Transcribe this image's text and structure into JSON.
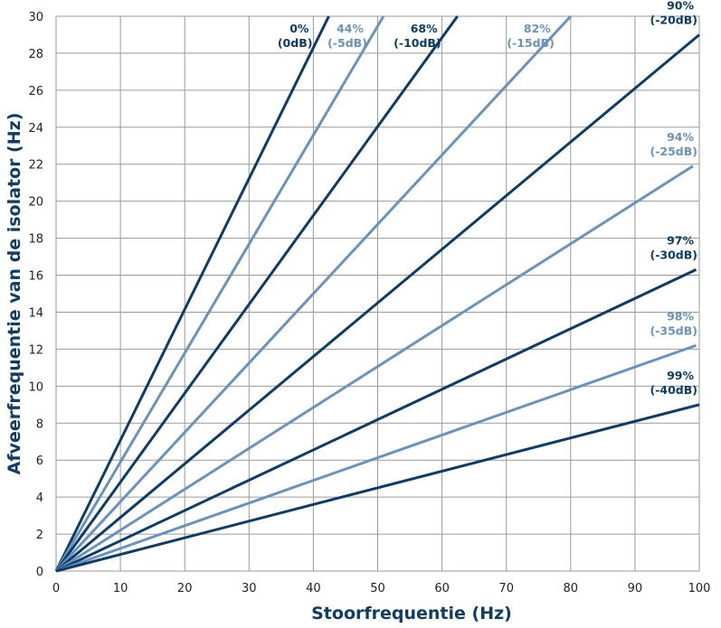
{
  "chart_data": {
    "type": "line",
    "xlabel": "Stoorfrequentie (Hz)",
    "ylabel": "Afveerfrequentie van de isolator (Hz)",
    "xlim": [
      0,
      100
    ],
    "ylim": [
      0,
      30
    ],
    "x_ticks": [
      "0",
      "10",
      "20",
      "30",
      "40",
      "50",
      "60",
      "70",
      "80",
      "90",
      "100"
    ],
    "y_ticks": [
      "0",
      "2",
      "4",
      "6",
      "8",
      "10",
      "12",
      "14",
      "16",
      "18",
      "20",
      "22",
      "24",
      "26",
      "28",
      "30"
    ],
    "grid": true,
    "colors": {
      "dark": "#0d3c68",
      "light": "#6a92bd",
      "grid": "#9a9a9a"
    },
    "series": [
      {
        "pct": "0%",
        "db": "(0dB)",
        "shade": "dark",
        "x": [
          0,
          42.4
        ],
        "y": [
          0,
          30
        ]
      },
      {
        "pct": "44%",
        "db": "(-5dB)",
        "shade": "light",
        "x": [
          0,
          50.9
        ],
        "y": [
          0,
          30
        ]
      },
      {
        "pct": "68%",
        "db": "(-10dB)",
        "shade": "dark",
        "x": [
          0,
          62.4
        ],
        "y": [
          0,
          30
        ]
      },
      {
        "pct": "82%",
        "db": "(-15dB)",
        "shade": "light",
        "x": [
          0,
          80
        ],
        "y": [
          0,
          30
        ]
      },
      {
        "pct": "90%",
        "db": "(-20dB)",
        "shade": "dark",
        "x": [
          0,
          100
        ],
        "y": [
          0,
          29
        ]
      },
      {
        "pct": "94%",
        "db": "(-25dB)",
        "shade": "light",
        "x": [
          0,
          99
        ],
        "y": [
          0,
          21.9
        ]
      },
      {
        "pct": "97%",
        "db": "(-30dB)",
        "shade": "dark",
        "x": [
          0,
          99.5
        ],
        "y": [
          0,
          16.3
        ]
      },
      {
        "pct": "98%",
        "db": "(-35dB)",
        "shade": "light",
        "x": [
          0,
          99.5
        ],
        "y": [
          0,
          12.2
        ]
      },
      {
        "pct": "99%",
        "db": "(-40dB)",
        "shade": "dark",
        "x": [
          0,
          100
        ],
        "y": [
          0,
          9.0
        ]
      }
    ]
  }
}
